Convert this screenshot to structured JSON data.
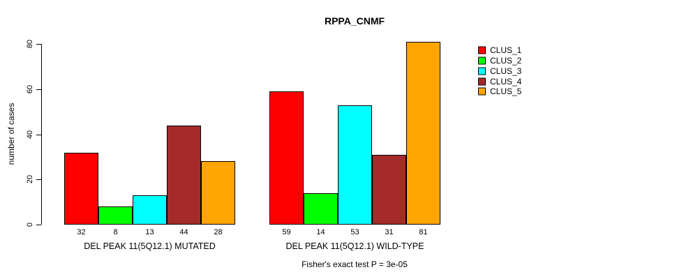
{
  "chart_data": {
    "type": "bar",
    "title": "RPPA_CNMF",
    "ylabel": "number of cases",
    "xlabel": "",
    "ylim": [
      0,
      80
    ],
    "yticks": [
      0,
      20,
      40,
      60,
      80
    ],
    "grid": false,
    "legend_position": "right",
    "bar_outline_color": "#000000",
    "series": [
      {
        "name": "CLUS_1",
        "color": "#ff0000"
      },
      {
        "name": "CLUS_2",
        "color": "#00ff00"
      },
      {
        "name": "CLUS_3",
        "color": "#00ffff"
      },
      {
        "name": "CLUS_4",
        "color": "#a52a2a"
      },
      {
        "name": "CLUS_5",
        "color": "#ffa500"
      }
    ],
    "groups": [
      {
        "label": "DEL PEAK 11(5Q12.1) MUTATED",
        "values": [
          32,
          8,
          13,
          44,
          28
        ]
      },
      {
        "label": "DEL PEAK 11(5Q12.1) WILD-TYPE",
        "values": [
          59,
          14,
          53,
          31,
          81
        ]
      }
    ],
    "annotation": "Fisher's exact test P = 3e-05"
  }
}
